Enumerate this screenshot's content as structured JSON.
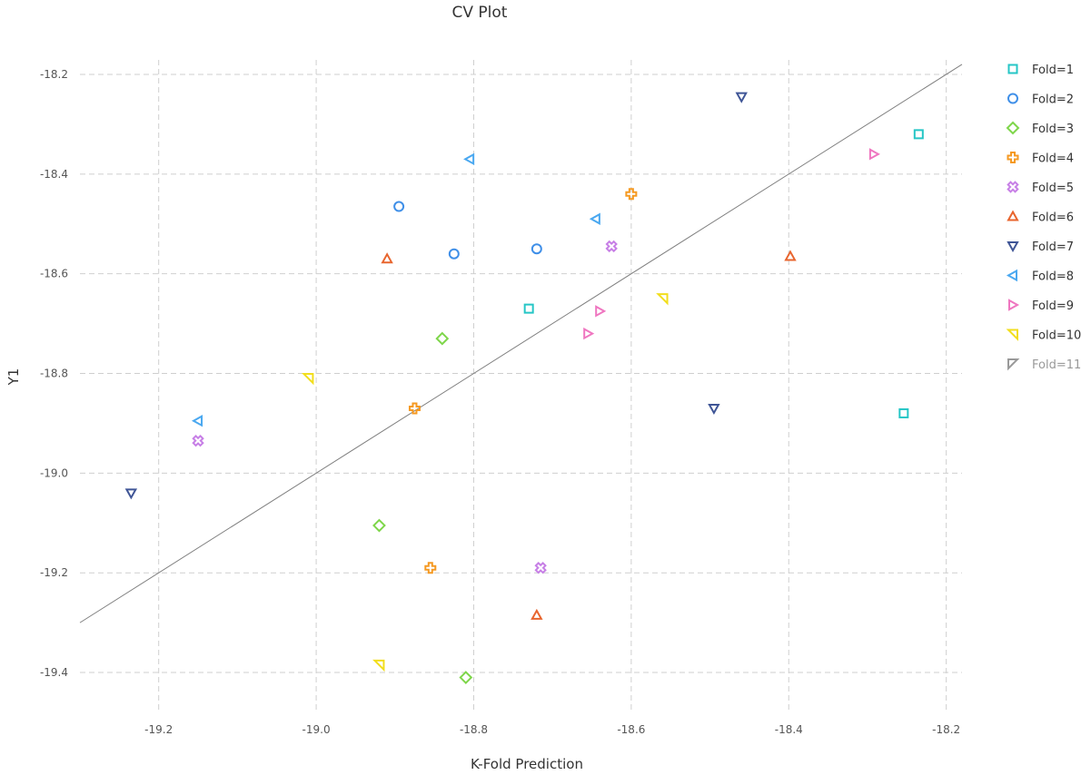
{
  "chart_data": {
    "type": "scatter",
    "title": "CV Plot",
    "xlabel": "K-Fold Prediction",
    "ylabel": "Y1",
    "xlim": [
      -19.3,
      -18.18
    ],
    "ylim": [
      -19.48,
      -18.16
    ],
    "xticks": [
      -19.2,
      -19.0,
      -18.8,
      -18.6,
      -18.4,
      -18.2
    ],
    "yticks": [
      -18.2,
      -18.4,
      -18.6,
      -18.8,
      -19.0,
      -19.2,
      -19.4
    ],
    "xtick_labels": [
      "-19.2",
      "-19.0",
      "-18.8",
      "-18.6",
      "-18.4",
      "-18.2"
    ],
    "ytick_labels": [
      "-18.2",
      "-18.4",
      "-18.6",
      "-18.8",
      "-19.0",
      "-19.2",
      "-19.4"
    ],
    "grid": true,
    "legend_position": "right",
    "reference_line": {
      "type": "y=x",
      "from": -19.3,
      "to": -18.18
    },
    "series": [
      {
        "name": "Fold=1",
        "symbol": "square",
        "color": "#26c6c6",
        "points": [
          [
            -18.235,
            -18.32
          ],
          [
            -18.254,
            -18.88
          ],
          [
            -18.73,
            -18.67
          ]
        ]
      },
      {
        "name": "Fold=2",
        "symbol": "circle",
        "color": "#3f8fe8",
        "points": [
          [
            -18.895,
            -18.465
          ],
          [
            -18.825,
            -18.56
          ],
          [
            -18.72,
            -18.55
          ]
        ]
      },
      {
        "name": "Fold=3",
        "symbol": "diamond",
        "color": "#7ed64a",
        "points": [
          [
            -18.84,
            -18.73
          ],
          [
            -18.92,
            -19.105
          ],
          [
            -18.81,
            -19.41
          ]
        ]
      },
      {
        "name": "Fold=4",
        "symbol": "cross",
        "color": "#f59a23",
        "points": [
          [
            -18.6,
            -18.44
          ],
          [
            -18.875,
            -18.87
          ],
          [
            -18.855,
            -19.19
          ]
        ]
      },
      {
        "name": "Fold=5",
        "symbol": "x",
        "color": "#c77fe6",
        "points": [
          [
            -18.625,
            -18.545
          ],
          [
            -19.15,
            -18.935
          ],
          [
            -18.715,
            -19.19
          ]
        ]
      },
      {
        "name": "Fold=6",
        "symbol": "triangle-up",
        "color": "#e8652e",
        "points": [
          [
            -18.91,
            -18.57
          ],
          [
            -18.398,
            -18.565
          ],
          [
            -18.72,
            -19.285
          ]
        ]
      },
      {
        "name": "Fold=7",
        "symbol": "triangle-down",
        "color": "#3f5596",
        "points": [
          [
            -18.46,
            -18.245
          ],
          [
            -18.495,
            -18.87
          ],
          [
            -19.235,
            -19.04
          ]
        ]
      },
      {
        "name": "Fold=8",
        "symbol": "triangle-left",
        "color": "#4aa8f0",
        "points": [
          [
            -18.805,
            -18.37
          ],
          [
            -18.645,
            -18.49
          ],
          [
            -19.15,
            -18.895
          ]
        ]
      },
      {
        "name": "Fold=9",
        "symbol": "triangle-right",
        "color": "#ef76c0",
        "points": [
          [
            -18.292,
            -18.36
          ],
          [
            -18.64,
            -18.675
          ],
          [
            -18.655,
            -18.72
          ]
        ]
      },
      {
        "name": "Fold=10",
        "symbol": "corner-down-right",
        "color": "#f2de1d",
        "points": [
          [
            -18.56,
            -18.65
          ],
          [
            -19.01,
            -18.81
          ],
          [
            -18.92,
            -19.385
          ]
        ]
      },
      {
        "name": "Fold=11",
        "symbol": "corner-up-left",
        "color": "#888888",
        "inactive": true,
        "points": []
      }
    ]
  }
}
